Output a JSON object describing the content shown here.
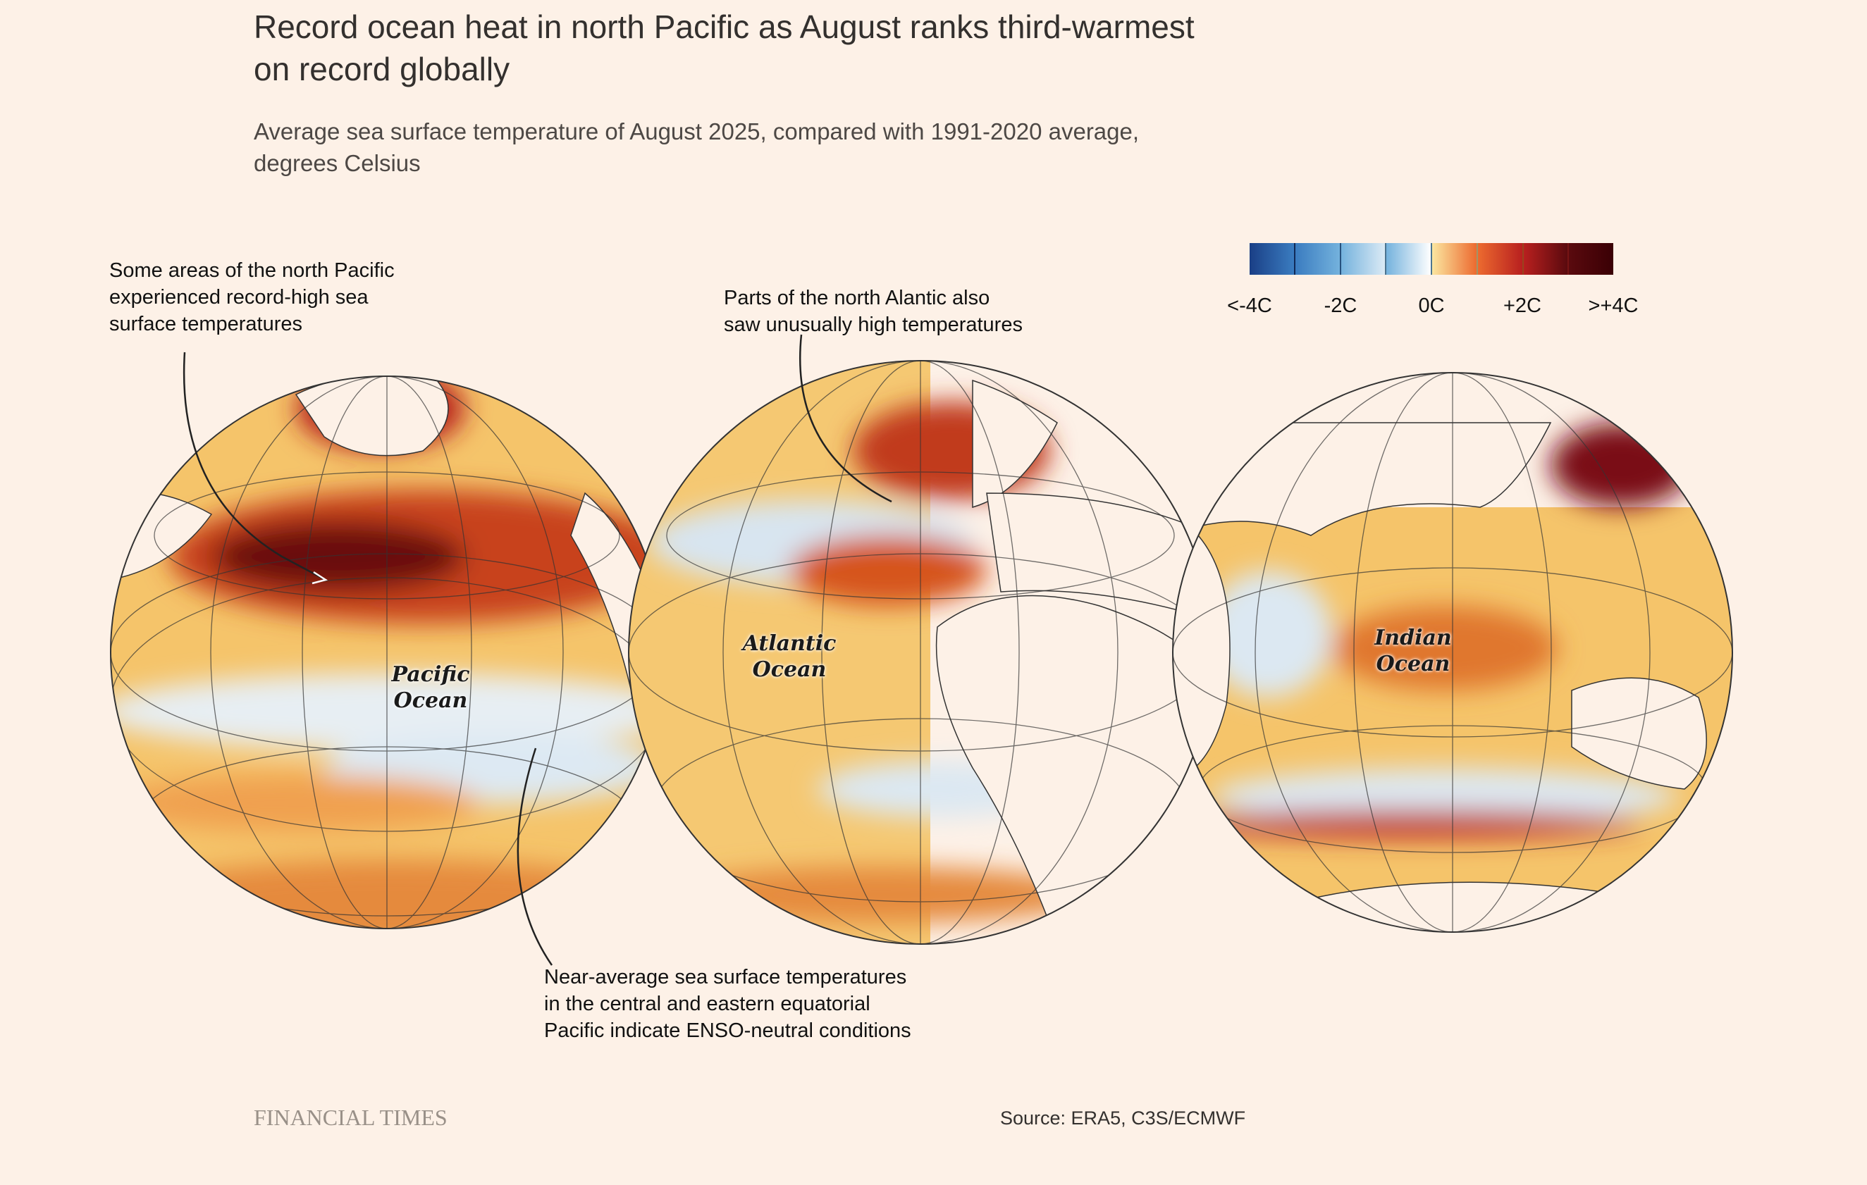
{
  "header": {
    "title_line1": "Record ocean heat in north Pacific as August ranks third-warmest",
    "title_line2": "on record globally",
    "subtitle_line1": "Average sea surface temperature of August 2025, compared with 1991-2020 average,",
    "subtitle_line2": "degrees Celsius"
  },
  "legend": {
    "labels": [
      "<-4C",
      "-2C",
      "0C",
      "+2C",
      ">+4C"
    ],
    "colors": [
      "#1a3f86",
      "#3a7cc0",
      "#74b2dd",
      "#dbeaf5",
      "#f7d27a",
      "#ec6a2f",
      "#b8201f",
      "#5a0a0e"
    ]
  },
  "annotations": {
    "north_pacific": [
      "Some areas of the north Pacific",
      "experienced record-high sea",
      "surface temperatures"
    ],
    "north_atlantic": [
      "Parts of the north Alantic also",
      "saw unusually high temperatures"
    ],
    "enso": [
      "Near-average sea surface temperatures",
      "in the central and eastern equatorial",
      "Pacific indicate ENSO-neutral conditions"
    ]
  },
  "oceans": {
    "pacific": [
      "Pacific",
      "Ocean"
    ],
    "atlantic": [
      "Atlantic",
      "Ocean"
    ],
    "indian": [
      "Indian",
      "Ocean"
    ]
  },
  "footer": {
    "brand": "FINANCIAL TIMES",
    "source": "Source: ERA5, C3S/ECMWF"
  }
}
